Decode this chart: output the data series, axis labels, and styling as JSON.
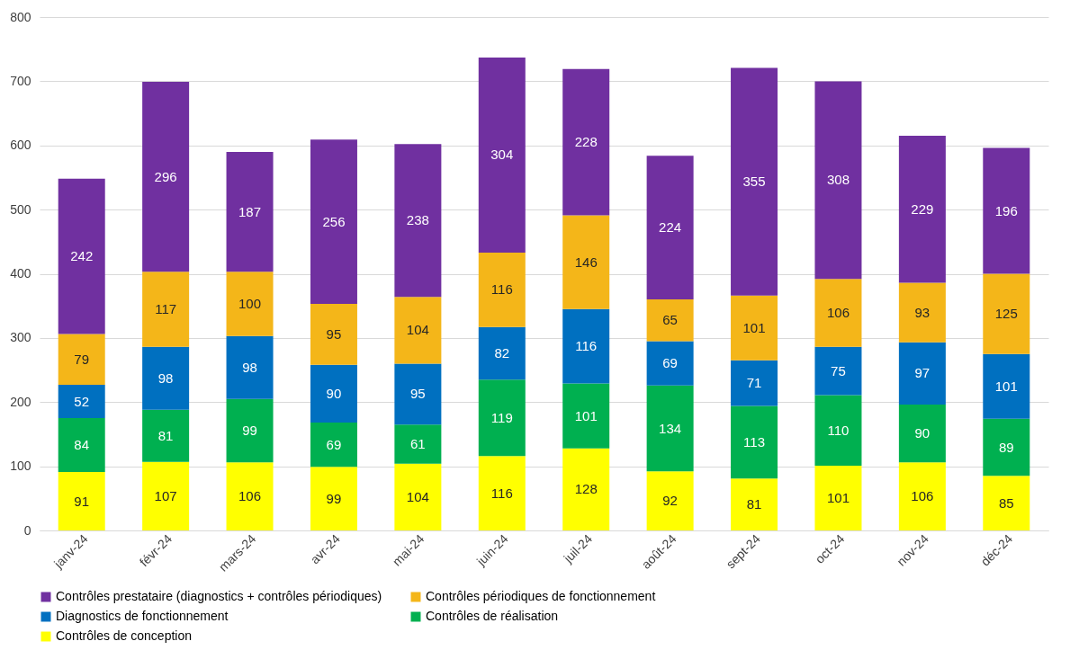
{
  "chart_data": {
    "type": "bar",
    "stacked": true,
    "categories": [
      "janv-24",
      "févr-24",
      "mars-24",
      "avr-24",
      "mai-24",
      "juin-24",
      "juil-24",
      "août-24",
      "sept-24",
      "oct-24",
      "nov-24",
      "déc-24"
    ],
    "series": [
      {
        "name": "Contrôles de conception",
        "color": "#ffff00",
        "values": [
          91,
          107,
          106,
          99,
          104,
          116,
          128,
          92,
          81,
          101,
          106,
          85
        ]
      },
      {
        "name": "Contrôles de réalisation",
        "color": "#00b050",
        "values": [
          84,
          81,
          99,
          69,
          61,
          119,
          101,
          134,
          113,
          110,
          90,
          89
        ]
      },
      {
        "name": "Diagnostics de fonctionnement",
        "color": "#0070c0",
        "values": [
          52,
          98,
          98,
          90,
          95,
          82,
          116,
          69,
          71,
          75,
          97,
          101
        ]
      },
      {
        "name": "Contrôles périodiques de fonctionnement",
        "color": "#f4b619",
        "values": [
          79,
          117,
          100,
          95,
          104,
          116,
          146,
          65,
          101,
          106,
          93,
          125
        ]
      },
      {
        "name": "Contrôles prestataire (diagnostics + contrôles périodiques)",
        "color": "#7030a0",
        "values": [
          242,
          296,
          187,
          256,
          238,
          304,
          228,
          224,
          355,
          308,
          229,
          196
        ]
      }
    ],
    "ylim": [
      0,
      800
    ],
    "yticks": [
      0,
      100,
      200,
      300,
      400,
      500,
      600,
      700,
      800
    ],
    "grid": "y",
    "legend": "bottom",
    "data_labels": true
  }
}
